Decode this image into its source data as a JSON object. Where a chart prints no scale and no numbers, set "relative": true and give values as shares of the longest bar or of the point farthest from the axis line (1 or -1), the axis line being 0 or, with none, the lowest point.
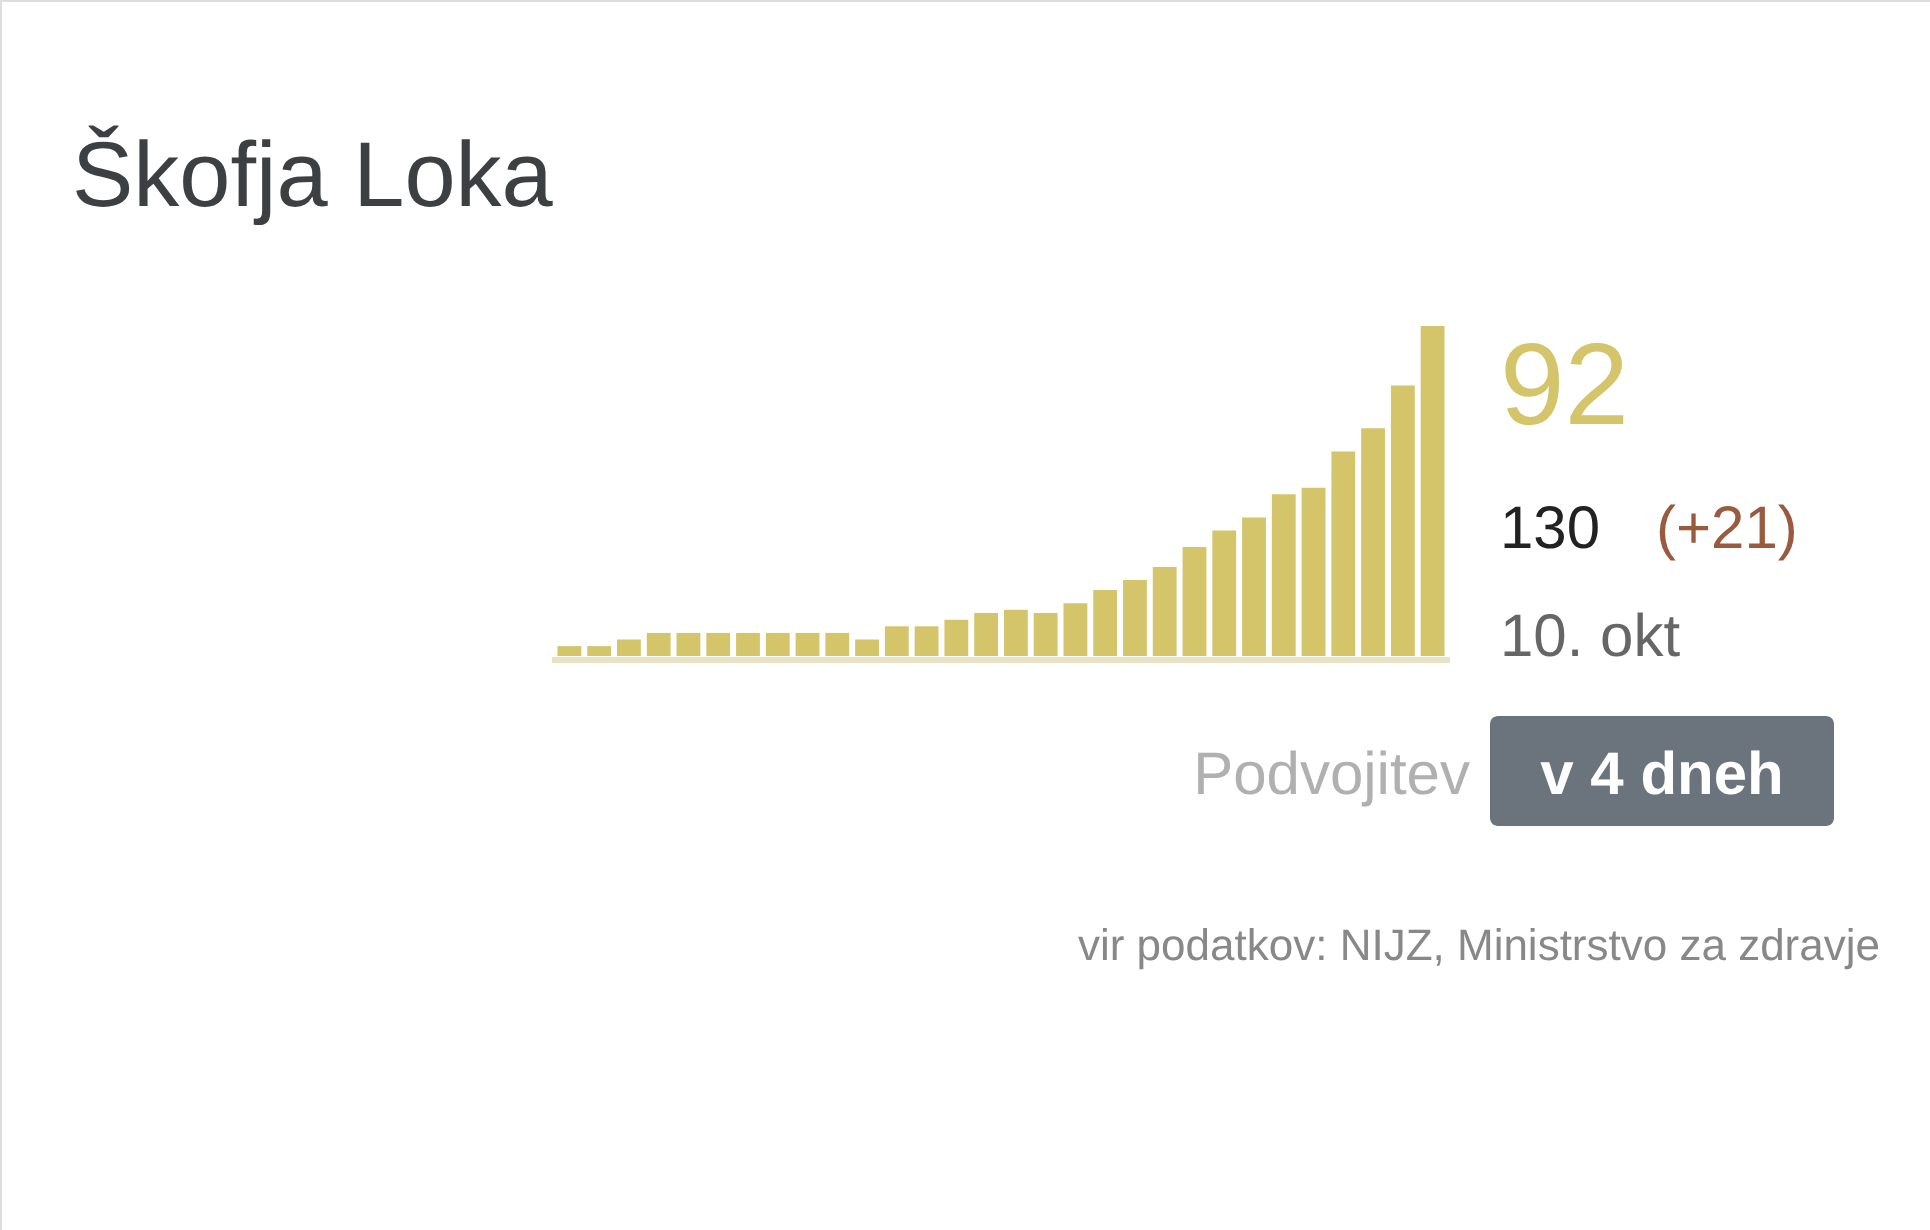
{
  "chart_data": {
    "type": "bar",
    "title": "Škofja Loka",
    "relative": true,
    "categories": [
      null,
      null,
      null,
      null,
      null,
      null,
      null,
      null,
      null,
      null,
      null,
      null,
      null,
      null,
      null,
      null,
      null,
      null,
      null,
      null,
      null,
      null,
      null,
      null,
      null,
      null,
      null,
      null,
      null,
      null
    ],
    "values": [
      0.03,
      0.03,
      0.05,
      0.07,
      0.07,
      0.07,
      0.07,
      0.07,
      0.07,
      0.07,
      0.05,
      0.09,
      0.09,
      0.11,
      0.13,
      0.14,
      0.13,
      0.16,
      0.2,
      0.23,
      0.27,
      0.33,
      0.38,
      0.42,
      0.49,
      0.51,
      0.62,
      0.69,
      0.82,
      1
    ],
    "color": "#d4c46a",
    "annotations": [
      "92",
      "130",
      "(+21)",
      "10. okt",
      "Podvojitev",
      "v 4 dneh",
      "vir podatkov: NIJZ, Ministrstvo za zdravje"
    ]
  }
}
